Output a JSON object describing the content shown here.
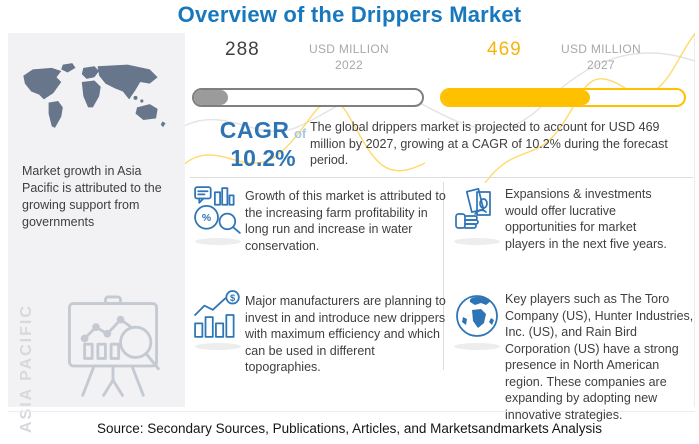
{
  "title": "Overview of the Drippers Market",
  "left_panel": {
    "region_label": "ASIA PACIFIC",
    "note": "Market growth in Asia Pacific is attributed to the growing support from governments"
  },
  "stats": {
    "start": {
      "value": "288",
      "unit": "USD MILLION",
      "year": "2022",
      "fill_percent": 15
    },
    "end": {
      "value": "469",
      "unit": "USD MILLION",
      "year": "2027",
      "fill_percent": 61
    }
  },
  "cagr": {
    "label": "CAGR",
    "of": "of",
    "value": "10.2%",
    "summary": "The global drippers market is projected to account for USD 469 million by 2027, growing at a CAGR of 10.2% during the forecast period."
  },
  "insights": [
    {
      "icon": "market-analysis-icon",
      "text": "Growth of this market is attributed to the increasing farm profitability in long run and increase in water conservation."
    },
    {
      "icon": "cash-investment-icon",
      "text": "Expansions & investments would offer lucrative opportunities for market players in the next five years."
    },
    {
      "icon": "growth-bars-icon",
      "text": "Major manufacturers are planning to invest in and introduce new drippers with maximum efficiency and which can be used in different topographies."
    },
    {
      "icon": "globe-icon",
      "text": "Key players such as The Toro Company (US), Hunter Industries, Inc. (US), and Rain Bird Corporation (US) have a strong presence in North American region. These companies are expanding by adopting new innovative strategies."
    }
  ],
  "source": "Source: Secondary Sources, Publications, Articles, and Marketsandmarkets Analysis",
  "colors": {
    "title_blue": "#1878be",
    "accent_blue": "#2e74b5",
    "icon_blue": "#2e75b6",
    "gold": "#ffc000",
    "bar_gray": "#9b9b9b",
    "map_slate": "#67768b",
    "panel_bg": "#f2f2f4",
    "muted_text": "#a8a8a8",
    "body_text": "#3f3f3f"
  }
}
